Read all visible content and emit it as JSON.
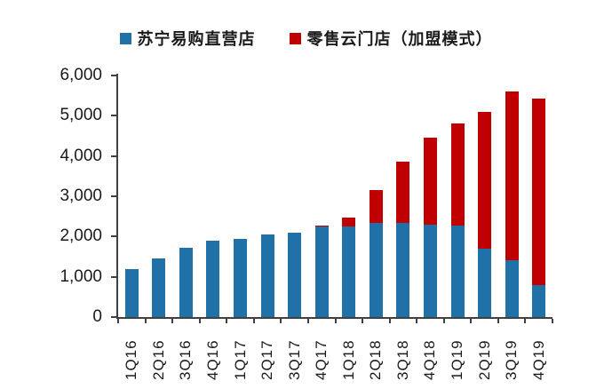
{
  "chart_data": {
    "type": "bar",
    "stacked": true,
    "title": "",
    "categories": [
      "1Q16",
      "2Q16",
      "3Q16",
      "4Q16",
      "1Q17",
      "2Q17",
      "3Q17",
      "4Q17",
      "1Q18",
      "2Q18",
      "3Q18",
      "4Q18",
      "1Q19",
      "2Q19",
      "3Q19",
      "4Q19"
    ],
    "series": [
      {
        "name": "苏宁易购直营店",
        "color": "#2171A9",
        "values": [
          1200,
          1460,
          1710,
          1890,
          1950,
          2060,
          2100,
          2240,
          2250,
          2330,
          2340,
          2300,
          2280,
          1700,
          1420,
          790
        ]
      },
      {
        "name": "零售云门店（加盟模式）",
        "color": "#C00000",
        "values": [
          0,
          0,
          0,
          0,
          0,
          0,
          0,
          30,
          230,
          820,
          1510,
          2150,
          2520,
          3400,
          4180,
          4630
        ]
      }
    ],
    "totals": [
      1200,
      1460,
      1710,
      1890,
      1950,
      2060,
      2100,
      2270,
      2480,
      3150,
      3850,
      4450,
      4800,
      5100,
      5600,
      5420
    ],
    "xlabel": "",
    "ylabel": "",
    "ylim": [
      0,
      6000
    ],
    "ytick_step": 1000,
    "ytick_labels": [
      "0",
      "1,000",
      "2,000",
      "3,000",
      "4,000",
      "5,000",
      "6,000"
    ],
    "grid": false,
    "legend_position": "top",
    "axis_color": "#404040",
    "label_color": "#1a1a1a"
  }
}
